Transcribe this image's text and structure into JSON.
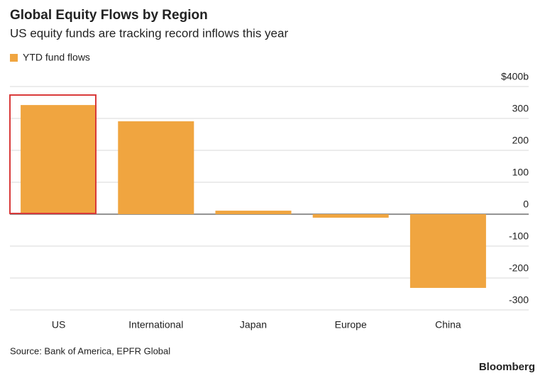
{
  "chart_data": {
    "type": "bar",
    "title": "Global Equity Flows by Region",
    "subtitle": "US equity funds are tracking record inflows this year",
    "legend": "YTD fund flows",
    "categories": [
      "US",
      "International",
      "Japan",
      "Europe",
      "China"
    ],
    "values": [
      342,
      291,
      11,
      -11,
      -231
    ],
    "color": "#f0a540",
    "ylim": [
      -300,
      400
    ],
    "yticks": [
      -300,
      -200,
      -100,
      0,
      100,
      200,
      300,
      {
        "value": 400,
        "label": "$400b"
      }
    ],
    "grid": true,
    "source": "Source: Bank of America, EPFR Global",
    "brand": "Bloomberg"
  }
}
